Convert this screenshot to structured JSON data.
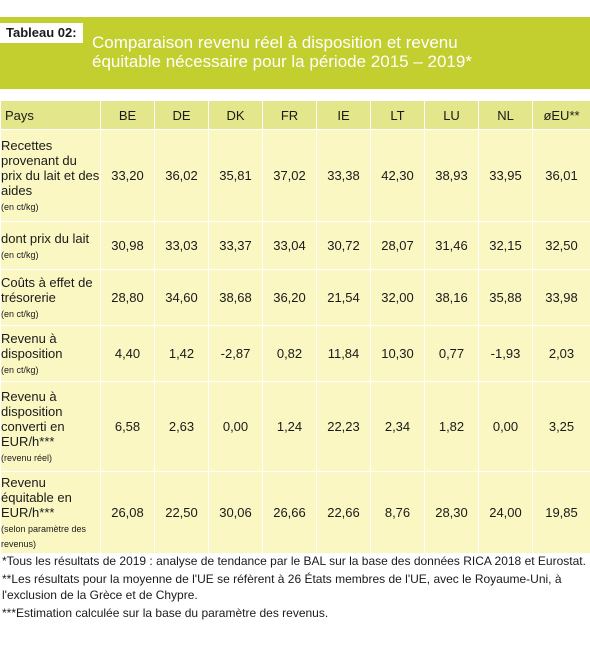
{
  "label": "Tableau 02:",
  "title_line1": "Comparaison revenu réel à disposition et revenu",
  "title_line2": "équitable nécessaire pour la période 2015 – 2019*",
  "table": {
    "header": [
      "Pays",
      "BE",
      "DE",
      "DK",
      "FR",
      "IE",
      "LT",
      "LU",
      "NL",
      "øEU**"
    ],
    "rows": [
      {
        "label": "Recettes provenant du prix du lait et des aides",
        "unit": "(en ct/kg)",
        "values": [
          "33,20",
          "36,02",
          "35,81",
          "37,02",
          "33,38",
          "42,30",
          "38,93",
          "33,95",
          "36,01"
        ]
      },
      {
        "label": "dont prix du lait",
        "unit": "(en ct/kg)",
        "values": [
          "30,98",
          "33,03",
          "33,37",
          "33,04",
          "30,72",
          "28,07",
          "31,46",
          "32,15",
          "32,50"
        ]
      },
      {
        "label": "Coûts à effet de trésorerie",
        "unit": "(en ct/kg)",
        "values": [
          "28,80",
          "34,60",
          "38,68",
          "36,20",
          "21,54",
          "32,00",
          "38,16",
          "35,88",
          "33,98"
        ]
      },
      {
        "label": "Revenu à disposition",
        "unit": "(en ct/kg)",
        "values": [
          "4,40",
          "1,42",
          "-2,87",
          "0,82",
          "11,84",
          "10,30",
          "0,77",
          "-1,93",
          "2,03"
        ]
      },
      {
        "label": "Revenu à disposition converti en EUR/h***",
        "unit": "(revenu réel)",
        "values": [
          "6,58",
          "2,63",
          "0,00",
          "1,24",
          "22,23",
          "2,34",
          "1,82",
          "0,00",
          "3,25"
        ]
      },
      {
        "label": "Revenu équitable en EUR/h***",
        "unit": "(selon paramètre des revenus)",
        "values": [
          "26,08",
          "22,50",
          "30,06",
          "26,66",
          "22,66",
          "8,76",
          "28,30",
          "24,00",
          "19,85"
        ]
      }
    ]
  },
  "notes": [
    "*Tous les résultats de 2019 : analyse de tendance par le BAL sur la base des données RICA 2018 et Eurostat.",
    "**Les résultats pour la moyenne de l'UE se réfèrent à 26 États membres de l'UE, avec le Royaume-Uni, à l'exclusion de la Grèce et de Chypre.",
    "***Estimation calculée sur la base du paramètre des revenus."
  ]
}
